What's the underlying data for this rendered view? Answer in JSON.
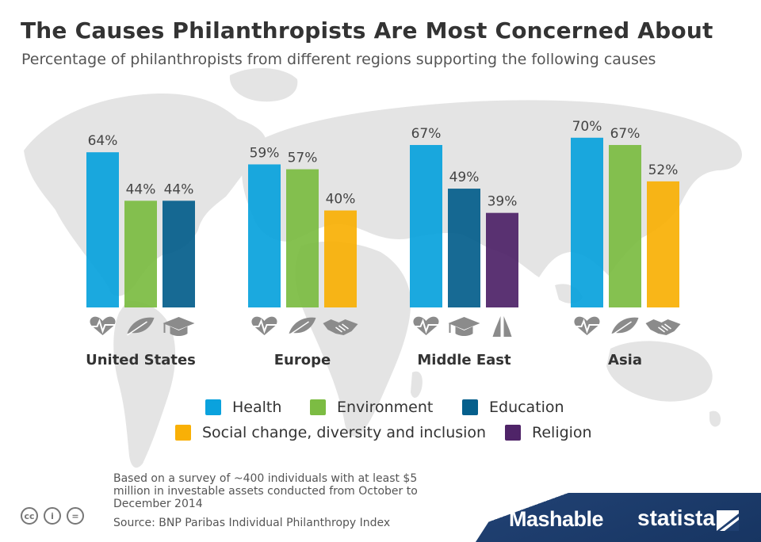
{
  "title": "The Causes Philanthropists Are Most Concerned About",
  "subtitle": "Percentage of philanthropists from different regions supporting the following causes",
  "colors": {
    "Health": "#0aa2dd",
    "Environment": "#7cbc43",
    "Education": "#055f8c",
    "Social change, diversity and inclusion": "#f9b006",
    "Religion": "#4f2468",
    "map": "#e4e4e4",
    "icon": "#8b8b8b"
  },
  "chart_data": {
    "type": "bar",
    "title": "The Causes Philanthropists Are Most Concerned About",
    "subtitle": "Percentage of philanthropists from different regions supporting the following causes",
    "unit": "%",
    "ylim": [
      0,
      100
    ],
    "grid": false,
    "groups": [
      {
        "region": "United States",
        "bars": [
          {
            "cause": "Health",
            "value": 64,
            "label": "64%",
            "icon": "heart-pulse-icon"
          },
          {
            "cause": "Environment",
            "value": 44,
            "label": "44%",
            "icon": "leaf-icon"
          },
          {
            "cause": "Education",
            "value": 44,
            "label": "44%",
            "icon": "graduation-cap-icon"
          }
        ]
      },
      {
        "region": "Europe",
        "bars": [
          {
            "cause": "Health",
            "value": 59,
            "label": "59%",
            "icon": "heart-pulse-icon"
          },
          {
            "cause": "Environment",
            "value": 57,
            "label": "57%",
            "icon": "leaf-icon"
          },
          {
            "cause": "Social change, diversity and inclusion",
            "value": 40,
            "label": "40%",
            "icon": "handshake-icon"
          }
        ]
      },
      {
        "region": "Middle East",
        "bars": [
          {
            "cause": "Health",
            "value": 67,
            "label": "67%",
            "icon": "heart-pulse-icon"
          },
          {
            "cause": "Education",
            "value": 49,
            "label": "49%",
            "icon": "graduation-cap-icon"
          },
          {
            "cause": "Religion",
            "value": 39,
            "label": "39%",
            "icon": "praying-hands-icon"
          }
        ]
      },
      {
        "region": "Asia",
        "bars": [
          {
            "cause": "Health",
            "value": 70,
            "label": "70%",
            "icon": "heart-pulse-icon"
          },
          {
            "cause": "Environment",
            "value": 67,
            "label": "67%",
            "icon": "leaf-icon"
          },
          {
            "cause": "Social change, diversity and inclusion",
            "value": 52,
            "label": "52%",
            "icon": "handshake-icon"
          }
        ]
      }
    ],
    "legend": [
      "Health",
      "Environment",
      "Education",
      "Social change, diversity and inclusion",
      "Religion"
    ]
  },
  "footnote": "Based on a survey of ~400 individuals with at least $5 million in investable assets conducted from October to December 2014",
  "source": "Source: BNP Paribas Individual Philanthropy Index",
  "license_icons": [
    "cc",
    "by",
    "nd"
  ],
  "license_labels": {
    "cc": "cc",
    "by": "i",
    "nd": "="
  },
  "brands": {
    "mashable": "Mashable",
    "statista": "statista"
  }
}
